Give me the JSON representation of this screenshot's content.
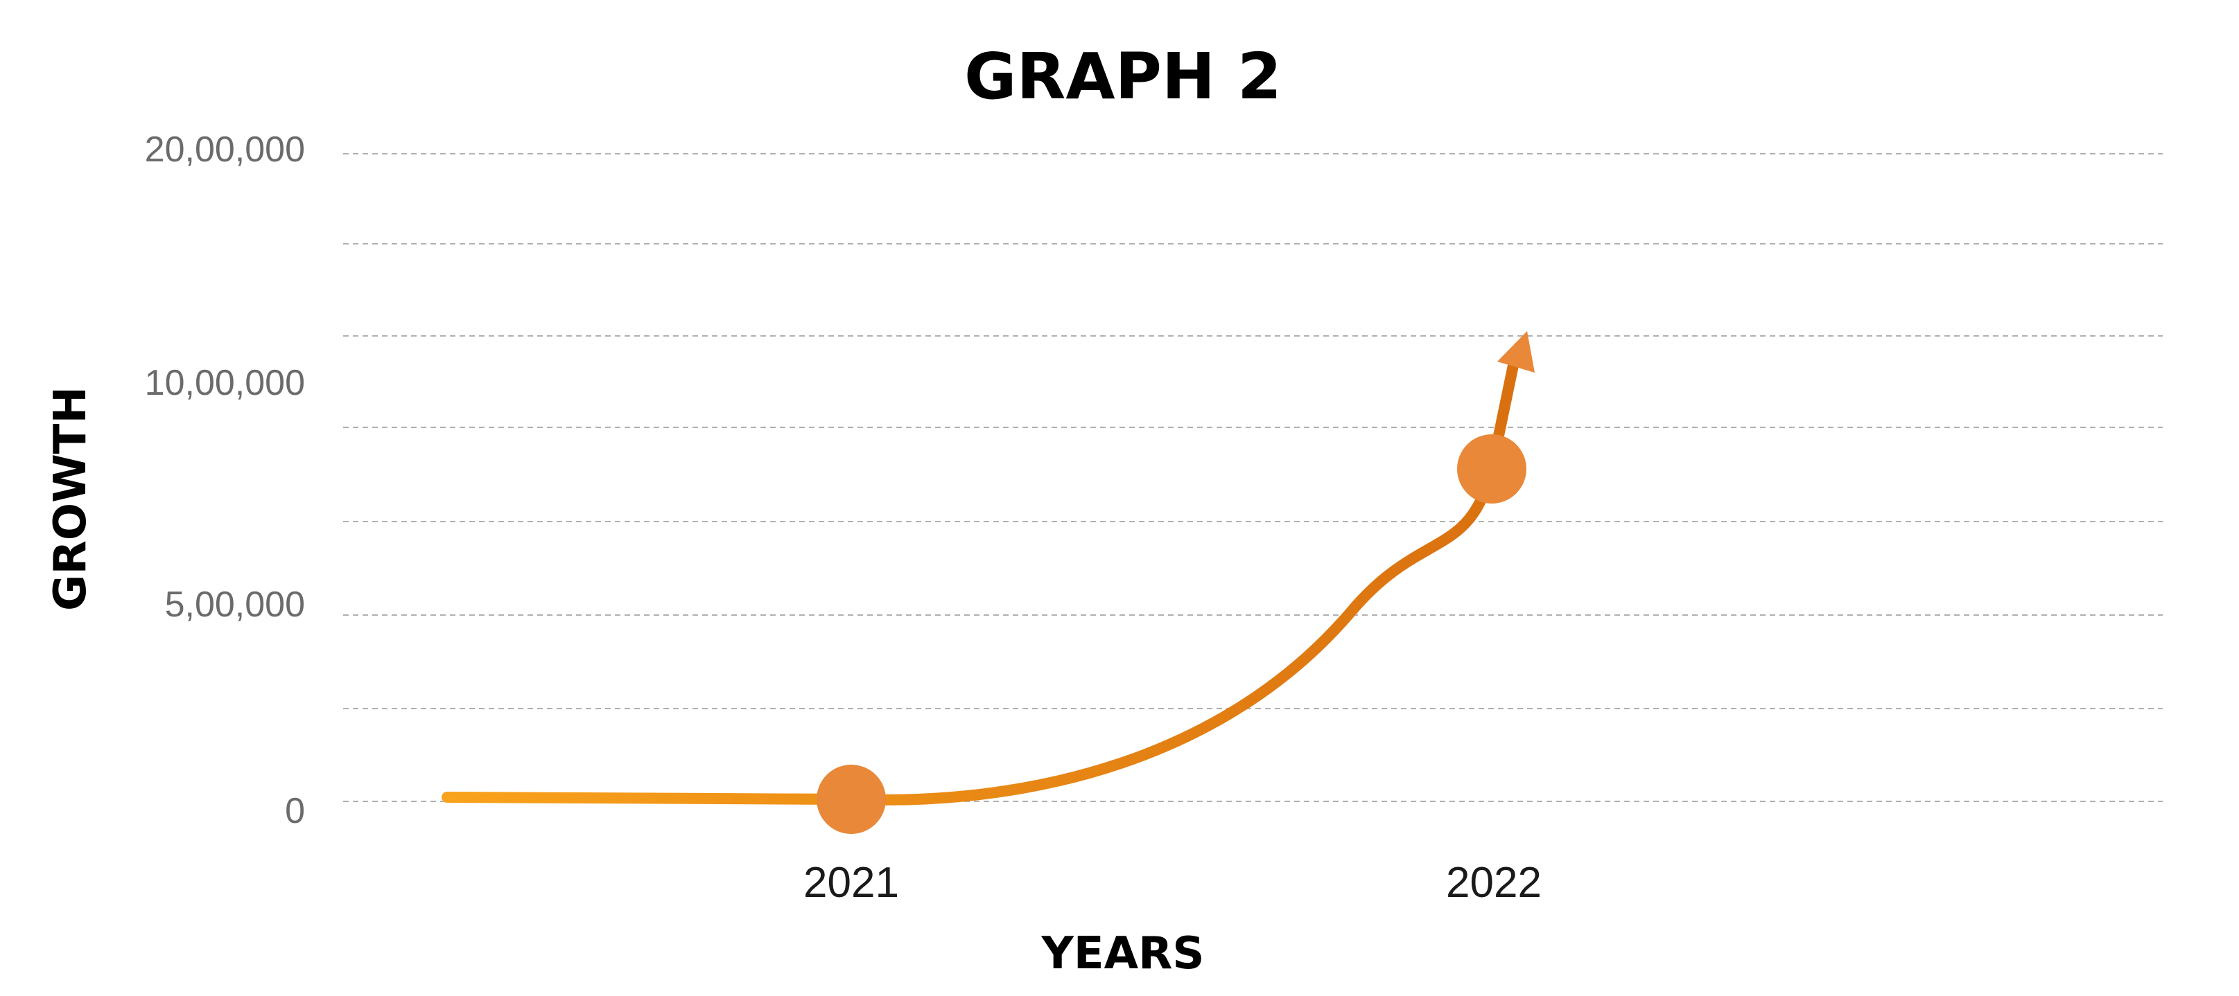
{
  "chart_data": {
    "type": "line",
    "title": "GRAPH 2",
    "xlabel": "YEARS",
    "ylabel": "GROWTH",
    "categories": [
      "2021",
      "2022"
    ],
    "series": [
      {
        "values": [
          0,
          900000
        ]
      }
    ],
    "y_ticks": [
      {
        "label": "0",
        "value": 0
      },
      {
        "label": "5,00,000",
        "value": 500000
      },
      {
        "label": "10,00,000",
        "value": 1000000
      },
      {
        "label": "20,00,000",
        "value": 2000000
      }
    ],
    "ylim": [
      0,
      2000000
    ],
    "grid": true,
    "legend": "none",
    "colors": {
      "line_start": "#F9A21B",
      "line_end": "#D9700F",
      "marker": "#E88838",
      "grid": "#B0B0B0"
    }
  }
}
